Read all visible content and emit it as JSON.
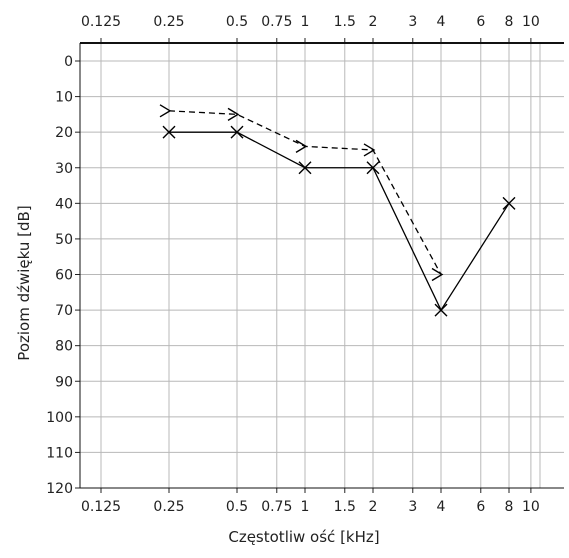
{
  "chart_data": {
    "type": "line",
    "xlabel": "Częstotliw ość [kHz]",
    "ylabel": "Poziom dźwięku [dB]",
    "x_scale": "log",
    "y_inverted": true,
    "x_ticks": [
      0.125,
      0.25,
      0.5,
      0.75,
      1,
      1.5,
      2,
      3,
      4,
      6,
      8,
      10
    ],
    "x_tick_labels": [
      "0.125",
      "0.25",
      "0.5",
      "0.75",
      "1",
      "1.5",
      "2",
      "3",
      "4",
      "6",
      "8",
      "10"
    ],
    "y_ticks": [
      0,
      10,
      20,
      30,
      40,
      50,
      60,
      70,
      80,
      90,
      100,
      110,
      120
    ],
    "y_tick_labels": [
      "0",
      "10",
      "20",
      "30",
      "40",
      "50",
      "60",
      "70",
      "80",
      "90",
      "100",
      "110",
      "120"
    ],
    "ylim": [
      -10,
      120
    ],
    "grid": true,
    "series": [
      {
        "style": "dashed",
        "marker": ">",
        "color": "#000000",
        "x": [
          0.25,
          0.5,
          1,
          2,
          4
        ],
        "y": [
          14,
          15,
          24,
          25,
          60
        ]
      },
      {
        "style": "solid",
        "marker": "x",
        "color": "#000000",
        "x": [
          0.25,
          0.5,
          1,
          2,
          4,
          8
        ],
        "y": [
          20,
          20,
          30,
          30,
          70,
          40
        ]
      }
    ]
  }
}
